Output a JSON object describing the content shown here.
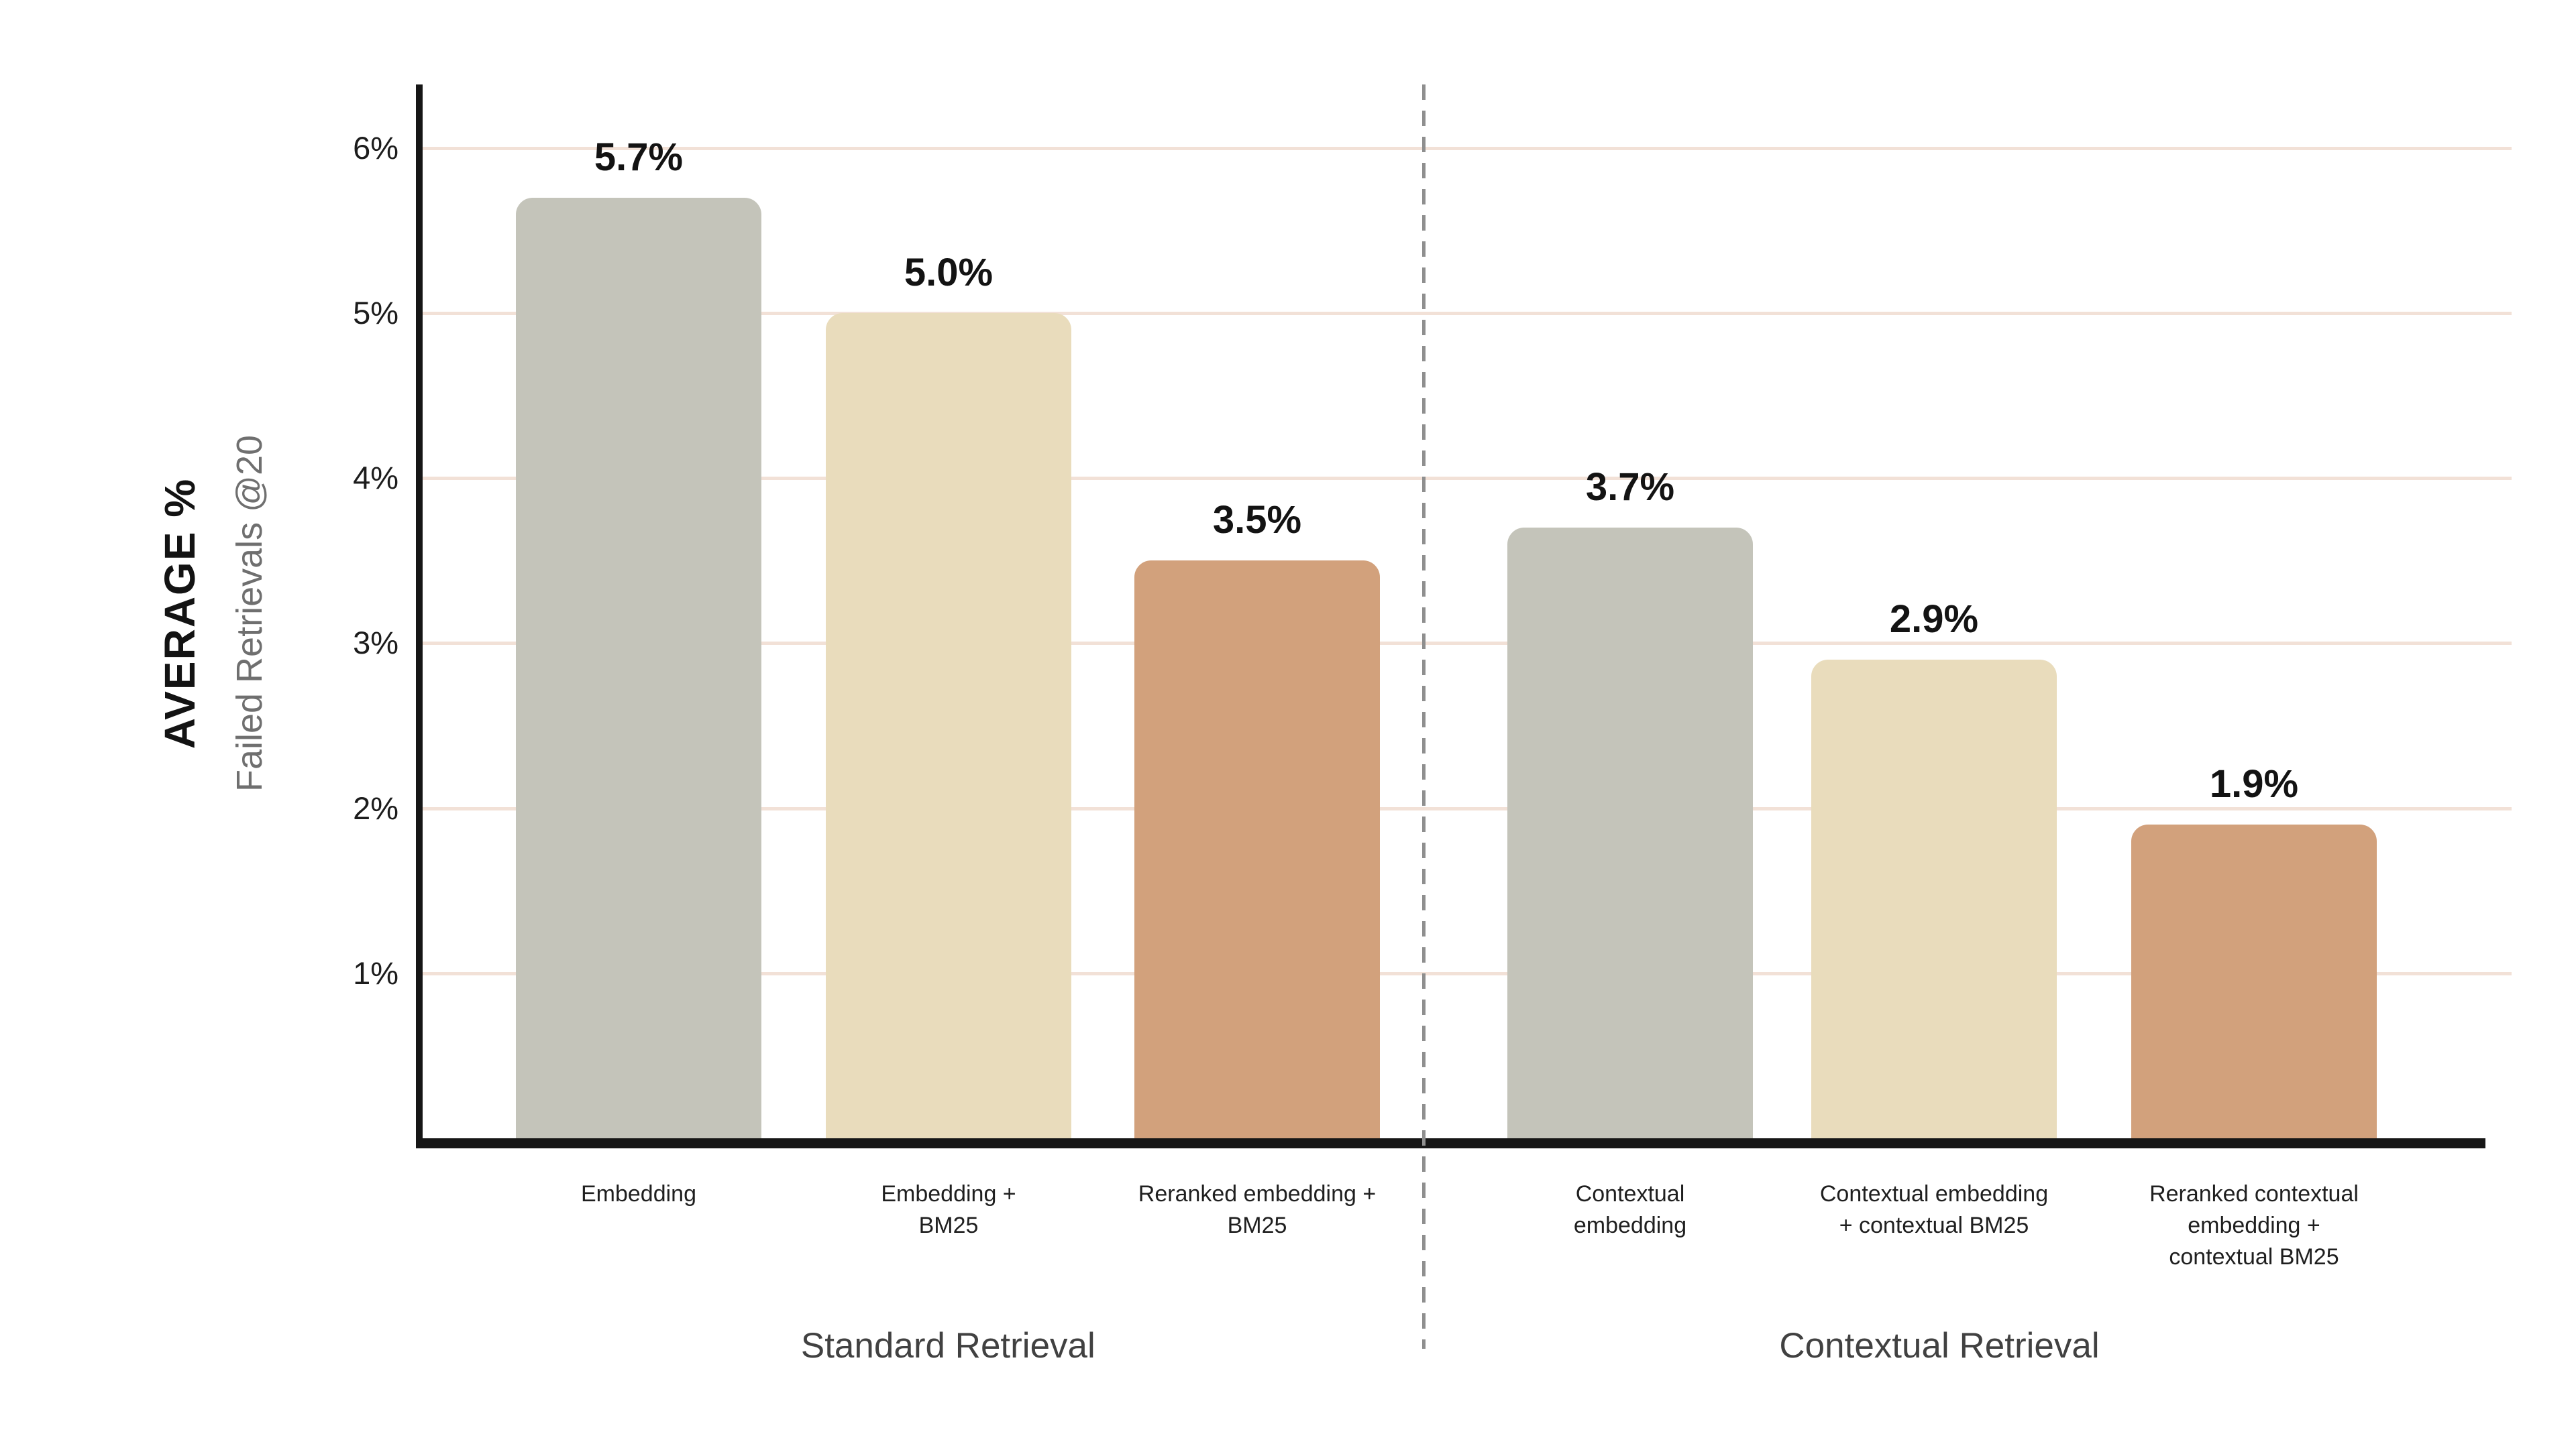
{
  "chart_data": {
    "type": "bar",
    "title": "",
    "ylabel_primary": "AVERAGE %",
    "ylabel_secondary": "Failed Retrievals @20",
    "xlabel": "",
    "ylim": [
      0,
      6.4
    ],
    "grid": true,
    "legend": "none",
    "y_ticks": [
      {
        "value": 6,
        "label": "6%"
      },
      {
        "value": 5,
        "label": "5%"
      },
      {
        "value": 4,
        "label": "4%"
      },
      {
        "value": 3,
        "label": "3%"
      },
      {
        "value": 2,
        "label": "2%"
      },
      {
        "value": 1,
        "label": "1%"
      }
    ],
    "bars": [
      {
        "label_lines": [
          "Embedding"
        ],
        "value": 5.7,
        "display": "5.7%",
        "color": "#c4c4ba",
        "group": "standard"
      },
      {
        "label_lines": [
          "Embedding +",
          "BM25"
        ],
        "value": 5.0,
        "display": "5.0%",
        "color": "#e9dcbc",
        "group": "standard"
      },
      {
        "label_lines": [
          "Reranked embedding +",
          "BM25"
        ],
        "value": 3.5,
        "display": "3.5%",
        "color": "#d2a17c",
        "group": "standard"
      },
      {
        "label_lines": [
          "Contextual",
          "embedding"
        ],
        "value": 3.7,
        "display": "3.7%",
        "color": "#c4c4ba",
        "group": "contextual"
      },
      {
        "label_lines": [
          "Contextual embedding",
          "+ contextual BM25"
        ],
        "value": 2.9,
        "display": "2.9%",
        "color": "#e9dcbc",
        "group": "contextual"
      },
      {
        "label_lines": [
          "Reranked contextual",
          "embedding +",
          "contextual BM25"
        ],
        "value": 1.9,
        "display": "1.9%",
        "color": "#d2a17c",
        "group": "contextual"
      }
    ],
    "groups": [
      {
        "id": "standard",
        "label": "Standard Retrieval"
      },
      {
        "id": "contextual",
        "label": "Contextual Retrieval"
      }
    ],
    "colors": {
      "bar_sage": "#c4c4ba",
      "bar_cream": "#e9dcbc",
      "bar_terracotta": "#d2a17c",
      "gridline": "#f2e1d7",
      "axis": "#161616",
      "divider_dash": "#8f8f8f",
      "value_label": "#131313",
      "group_label": "#414141",
      "ylabel_secondary": "#6f6f6f",
      "background": "#ffffff"
    }
  }
}
